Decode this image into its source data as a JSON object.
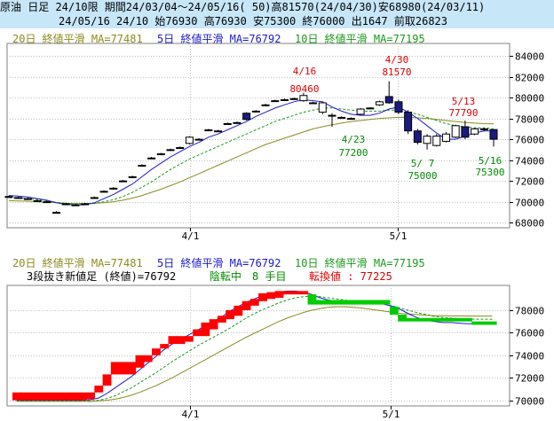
{
  "header": {
    "line1": "原油 日足 24/10限 期間24/03/04～24/05/16( 50)高81570(24/04/30)安68980(24/03/11)",
    "line2": "24/05/16 24/10 始76930 高76930 安75300 終76000 出1647 前取26823"
  },
  "legend": {
    "ma20": "20日 終値平滑 MA=77481",
    "ma5": "5日 終値平滑 MA=76792",
    "ma10": "10日 終値平滑 MA=77195"
  },
  "kagi_info": {
    "label": "3段抜き新値足 (終値)=76792",
    "state": "陰転中",
    "count": "8 手目",
    "reversal": "転換値 : 77225"
  },
  "colors": {
    "up": "#ff0000",
    "down": "#00cc00",
    "candle_down": "#1a1a80",
    "ma5": "#1a1acc",
    "ma10": "#1a9a1a",
    "ma20": "#8b8b1e",
    "grid": "#c0c0c0"
  },
  "chart_data": [
    {
      "type": "candlestick",
      "x_ticks": [
        "4/1",
        "5/1"
      ],
      "y_ticks": [
        68000,
        70000,
        72000,
        74000,
        76000,
        78000,
        80000,
        82000,
        84000
      ],
      "ylim": [
        67500,
        85200
      ],
      "annotations": [
        {
          "label": "4/16",
          "value": "80460",
          "color": "red"
        },
        {
          "label": "4/30",
          "value": "81570",
          "color": "red"
        },
        {
          "label": "5/13",
          "value": "77790",
          "color": "red"
        },
        {
          "label": "4/23",
          "value": "77200",
          "color": "green"
        },
        {
          "label": "5/ 7",
          "value": "75000",
          "color": "green"
        },
        {
          "label": "5/16",
          "value": "75300",
          "color": "green"
        }
      ],
      "candles": [
        {
          "o": 70500,
          "c": 70500,
          "h": 70600,
          "l": 70400
        },
        {
          "o": 70400,
          "c": 70400,
          "h": 70500,
          "l": 70300
        },
        {
          "o": 70300,
          "c": 70300,
          "h": 70400,
          "l": 70200
        },
        {
          "o": 70100,
          "c": 70100,
          "h": 70200,
          "l": 70000
        },
        {
          "o": 70000,
          "c": 70000,
          "h": 70100,
          "l": 69900
        },
        {
          "o": 68980,
          "c": 68980,
          "h": 69100,
          "l": 68980
        },
        {
          "o": 69800,
          "c": 69800,
          "h": 69900,
          "l": 69700
        },
        {
          "o": 69700,
          "c": 69700,
          "h": 69800,
          "l": 69600
        },
        {
          "o": 69800,
          "c": 69800,
          "h": 69900,
          "l": 69700
        },
        {
          "o": 70400,
          "c": 70400,
          "h": 70500,
          "l": 70300
        },
        {
          "o": 71000,
          "c": 71000,
          "h": 71100,
          "l": 70900
        },
        {
          "o": 71300,
          "c": 71300,
          "h": 71400,
          "l": 71200
        },
        {
          "o": 72000,
          "c": 72000,
          "h": 72100,
          "l": 71900
        },
        {
          "o": 72400,
          "c": 72400,
          "h": 72500,
          "l": 72300
        },
        {
          "o": 73500,
          "c": 73500,
          "h": 73600,
          "l": 73400
        },
        {
          "o": 74200,
          "c": 74200,
          "h": 74300,
          "l": 74100
        },
        {
          "o": 74600,
          "c": 74600,
          "h": 74700,
          "l": 74500
        },
        {
          "o": 75000,
          "c": 75000,
          "h": 75100,
          "l": 74900
        },
        {
          "o": 75200,
          "c": 75200,
          "h": 75300,
          "l": 75100
        },
        {
          "o": 75600,
          "c": 76200,
          "h": 76300,
          "l": 75500
        },
        {
          "o": 76000,
          "c": 76000,
          "h": 76100,
          "l": 75900
        },
        {
          "o": 76900,
          "c": 76900,
          "h": 77000,
          "l": 76800
        },
        {
          "o": 76800,
          "c": 76800,
          "h": 76900,
          "l": 76700
        },
        {
          "o": 77500,
          "c": 77500,
          "h": 77600,
          "l": 77400
        },
        {
          "o": 77600,
          "c": 77600,
          "h": 77700,
          "l": 77500
        },
        {
          "o": 78500,
          "c": 77900,
          "h": 78600,
          "l": 77800
        },
        {
          "o": 78700,
          "c": 78700,
          "h": 78800,
          "l": 78600
        },
        {
          "o": 79300,
          "c": 79300,
          "h": 79400,
          "l": 79200
        },
        {
          "o": 79700,
          "c": 79700,
          "h": 79800,
          "l": 79600
        },
        {
          "o": 79800,
          "c": 79800,
          "h": 79900,
          "l": 79700
        },
        {
          "o": 79900,
          "c": 79900,
          "h": 80000,
          "l": 79800
        },
        {
          "o": 79700,
          "c": 80200,
          "h": 80460,
          "l": 79600
        },
        {
          "o": 79500,
          "c": 79500,
          "h": 79600,
          "l": 79400
        },
        {
          "o": 78600,
          "c": 79500,
          "h": 79600,
          "l": 78400
        },
        {
          "o": 78300,
          "c": 78300,
          "h": 78500,
          "l": 77200
        },
        {
          "o": 78100,
          "c": 78100,
          "h": 78200,
          "l": 78000
        },
        {
          "o": 78000,
          "c": 78000,
          "h": 78100,
          "l": 77900
        },
        {
          "o": 78400,
          "c": 78900,
          "h": 79000,
          "l": 78300
        },
        {
          "o": 79000,
          "c": 79000,
          "h": 79100,
          "l": 78900
        },
        {
          "o": 79300,
          "c": 79600,
          "h": 79700,
          "l": 79200
        },
        {
          "o": 80100,
          "c": 79500,
          "h": 81570,
          "l": 79400
        },
        {
          "o": 79600,
          "c": 78600,
          "h": 79800,
          "l": 78400
        },
        {
          "o": 78600,
          "c": 76800,
          "h": 78800,
          "l": 76500
        },
        {
          "o": 76800,
          "c": 75700,
          "h": 77000,
          "l": 75500
        },
        {
          "o": 75600,
          "c": 76300,
          "h": 76500,
          "l": 75000
        },
        {
          "o": 75400,
          "c": 76300,
          "h": 76500,
          "l": 75300
        },
        {
          "o": 75800,
          "c": 76500,
          "h": 76700,
          "l": 75700
        },
        {
          "o": 76200,
          "c": 77300,
          "h": 77400,
          "l": 76100
        },
        {
          "o": 77200,
          "c": 76200,
          "h": 77790,
          "l": 76000
        },
        {
          "o": 76500,
          "c": 77000,
          "h": 77100,
          "l": 76400
        },
        {
          "o": 77000,
          "c": 76900,
          "h": 77100,
          "l": 76800
        },
        {
          "o": 76930,
          "c": 76000,
          "h": 76930,
          "l": 75300
        }
      ],
      "ma5": [
        70600,
        70550,
        70450,
        70300,
        70150,
        69900,
        69750,
        69700,
        69700,
        69900,
        70300,
        70700,
        71200,
        71700,
        72400,
        73100,
        73700,
        74300,
        74800,
        75300,
        75700,
        76200,
        76500,
        76900,
        77300,
        77700,
        78200,
        78600,
        79000,
        79300,
        79600,
        79800,
        79700,
        79600,
        79100,
        78700,
        78400,
        78300,
        78300,
        78500,
        78900,
        79100,
        78600,
        78000,
        77300,
        76600,
        76000,
        76000,
        76300,
        76600,
        76800,
        76800
      ],
      "ma10": [
        70400,
        70350,
        70300,
        70200,
        70100,
        69950,
        69850,
        69800,
        69800,
        69850,
        70000,
        70200,
        70500,
        70900,
        71400,
        71900,
        72500,
        73100,
        73600,
        74100,
        74500,
        74900,
        75300,
        75700,
        76100,
        76500,
        76900,
        77300,
        77700,
        78000,
        78300,
        78600,
        78800,
        79000,
        79000,
        78900,
        78800,
        78700,
        78700,
        78700,
        78800,
        78800,
        78600,
        78400,
        78100,
        77800,
        77500,
        77300,
        77200,
        77100,
        77100,
        77000
      ],
      "ma20": [
        70100,
        70080,
        70050,
        70000,
        69950,
        69900,
        69850,
        69830,
        69830,
        69850,
        69900,
        70000,
        70150,
        70350,
        70600,
        70900,
        71200,
        71550,
        71900,
        72300,
        72700,
        73100,
        73500,
        73900,
        74300,
        74700,
        75100,
        75500,
        75800,
        76100,
        76400,
        76700,
        77000,
        77200,
        77400,
        77550,
        77700,
        77800,
        77900,
        78000,
        78050,
        78100,
        78100,
        78050,
        78000,
        77900,
        77800,
        77700,
        77600,
        77550,
        77500,
        77480
      ]
    },
    {
      "type": "kagi-bar",
      "x_ticks": [
        "4/1",
        "5/1"
      ],
      "y_ticks": [
        70000,
        72000,
        74000,
        76000,
        78000
      ],
      "ylim": [
        69500,
        80200
      ],
      "bricks": [
        {
          "low": 70000,
          "high": 70700,
          "dir": "up"
        },
        {
          "low": 70000,
          "high": 70700,
          "dir": "up"
        },
        {
          "low": 70000,
          "high": 70700,
          "dir": "up"
        },
        {
          "low": 70000,
          "high": 70700,
          "dir": "up"
        },
        {
          "low": 70000,
          "high": 70700,
          "dir": "up"
        },
        {
          "low": 70000,
          "high": 70700,
          "dir": "up"
        },
        {
          "low": 70000,
          "high": 70700,
          "dir": "up"
        },
        {
          "low": 70000,
          "high": 70700,
          "dir": "up"
        },
        {
          "low": 70000,
          "high": 70700,
          "dir": "up"
        },
        {
          "low": 70100,
          "high": 70700,
          "dir": "up"
        },
        {
          "low": 70700,
          "high": 71300,
          "dir": "up"
        },
        {
          "low": 71300,
          "high": 72300,
          "dir": "up"
        },
        {
          "low": 72300,
          "high": 73400,
          "dir": "up"
        },
        {
          "low": 72300,
          "high": 73400,
          "dir": "up"
        },
        {
          "low": 72300,
          "high": 73400,
          "dir": "up"
        },
        {
          "low": 72900,
          "high": 74000,
          "dir": "up"
        },
        {
          "low": 73400,
          "high": 74000,
          "dir": "up"
        },
        {
          "low": 74000,
          "high": 74600,
          "dir": "up"
        },
        {
          "low": 74600,
          "high": 75000,
          "dir": "up"
        },
        {
          "low": 75000,
          "high": 75700,
          "dir": "up"
        },
        {
          "low": 75000,
          "high": 75700,
          "dir": "up"
        },
        {
          "low": 75200,
          "high": 75700,
          "dir": "up"
        },
        {
          "low": 75700,
          "high": 76300,
          "dir": "up"
        },
        {
          "low": 75700,
          "high": 76900,
          "dir": "up"
        },
        {
          "low": 76300,
          "high": 77200,
          "dir": "up"
        },
        {
          "low": 76900,
          "high": 77500,
          "dir": "up"
        },
        {
          "low": 77200,
          "high": 78000,
          "dir": "up"
        },
        {
          "low": 77500,
          "high": 78400,
          "dir": "up"
        },
        {
          "low": 78000,
          "high": 78800,
          "dir": "up"
        },
        {
          "low": 78400,
          "high": 79000,
          "dir": "up"
        },
        {
          "low": 78800,
          "high": 79500,
          "dir": "up"
        },
        {
          "low": 79000,
          "high": 79600,
          "dir": "up"
        },
        {
          "low": 79100,
          "high": 79700,
          "dir": "up"
        },
        {
          "low": 79400,
          "high": 79700,
          "dir": "up"
        },
        {
          "low": 79400,
          "high": 79700,
          "dir": "up"
        },
        {
          "low": 79400,
          "high": 79700,
          "dir": "up"
        },
        {
          "low": 78500,
          "high": 79400,
          "dir": "down"
        },
        {
          "low": 78500,
          "high": 78900,
          "dir": "down"
        },
        {
          "low": 78500,
          "high": 78900,
          "dir": "down"
        },
        {
          "low": 78500,
          "high": 78900,
          "dir": "down"
        },
        {
          "low": 78500,
          "high": 78900,
          "dir": "down"
        },
        {
          "low": 78500,
          "high": 78900,
          "dir": "down"
        },
        {
          "low": 78500,
          "high": 78900,
          "dir": "down"
        },
        {
          "low": 78500,
          "high": 78900,
          "dir": "down"
        },
        {
          "low": 78500,
          "high": 78900,
          "dir": "down"
        },
        {
          "low": 78500,
          "high": 78900,
          "dir": "down"
        },
        {
          "low": 77600,
          "high": 78300,
          "dir": "down"
        },
        {
          "low": 77000,
          "high": 77600,
          "dir": "down"
        },
        {
          "low": 77000,
          "high": 77300,
          "dir": "down"
        },
        {
          "low": 77000,
          "high": 77300,
          "dir": "down"
        },
        {
          "low": 77000,
          "high": 77300,
          "dir": "down"
        },
        {
          "low": 77000,
          "high": 77300,
          "dir": "down"
        },
        {
          "low": 77000,
          "high": 77300,
          "dir": "down"
        },
        {
          "low": 77000,
          "high": 77300,
          "dir": "down"
        },
        {
          "low": 77000,
          "high": 77300,
          "dir": "down"
        },
        {
          "low": 77000,
          "high": 77300,
          "dir": "down"
        },
        {
          "low": 76700,
          "high": 77000,
          "dir": "down"
        },
        {
          "low": 76700,
          "high": 77000,
          "dir": "down"
        },
        {
          "low": 76700,
          "high": 77000,
          "dir": "down"
        }
      ],
      "ma5": [
        70000,
        70000,
        70000,
        70000,
        70000,
        70000,
        70000,
        70000,
        70000,
        70050,
        70200,
        70600,
        71100,
        71600,
        72100,
        72700,
        73300,
        73900,
        74500,
        75000,
        75400,
        75800,
        76200,
        76600,
        77000,
        77400,
        77900,
        78300,
        78700,
        79000,
        79300,
        79500,
        79600,
        79700,
        79700,
        79600,
        79400,
        79100,
        78900,
        78800,
        78800,
        78800,
        78800,
        78800,
        78700,
        78500,
        78300,
        78000,
        77600,
        77300,
        77100,
        77000,
        76900,
        76900,
        76850,
        76800,
        76800,
        76790,
        76790
      ],
      "ma10": [
        69950,
        69950,
        69950,
        69950,
        69950,
        69950,
        69950,
        69950,
        69950,
        69950,
        70000,
        70150,
        70400,
        70750,
        71100,
        71550,
        72000,
        72450,
        72950,
        73450,
        73900,
        74350,
        74800,
        75200,
        75600,
        76000,
        76400,
        76850,
        77300,
        77700,
        78050,
        78350,
        78650,
        78900,
        79100,
        79200,
        79250,
        79200,
        79100,
        79000,
        78900,
        78800,
        78700,
        78650,
        78600,
        78500,
        78350,
        78150,
        77950,
        77750,
        77600,
        77450,
        77350,
        77300,
        77250,
        77220,
        77200,
        77200,
        77195
      ],
      "ma20": [
        69900,
        69900,
        69900,
        69900,
        69900,
        69900,
        69900,
        69900,
        69900,
        69900,
        69950,
        70000,
        70100,
        70250,
        70450,
        70700,
        71000,
        71300,
        71650,
        72000,
        72400,
        72800,
        73200,
        73600,
        74000,
        74400,
        74800,
        75200,
        75600,
        75950,
        76300,
        76650,
        77000,
        77300,
        77550,
        77800,
        78000,
        78150,
        78250,
        78300,
        78300,
        78250,
        78200,
        78100,
        78000,
        77900,
        77800,
        77700,
        77650,
        77600,
        77550,
        77520,
        77500,
        77490,
        77485,
        77482,
        77481,
        77481,
        77481
      ]
    }
  ]
}
